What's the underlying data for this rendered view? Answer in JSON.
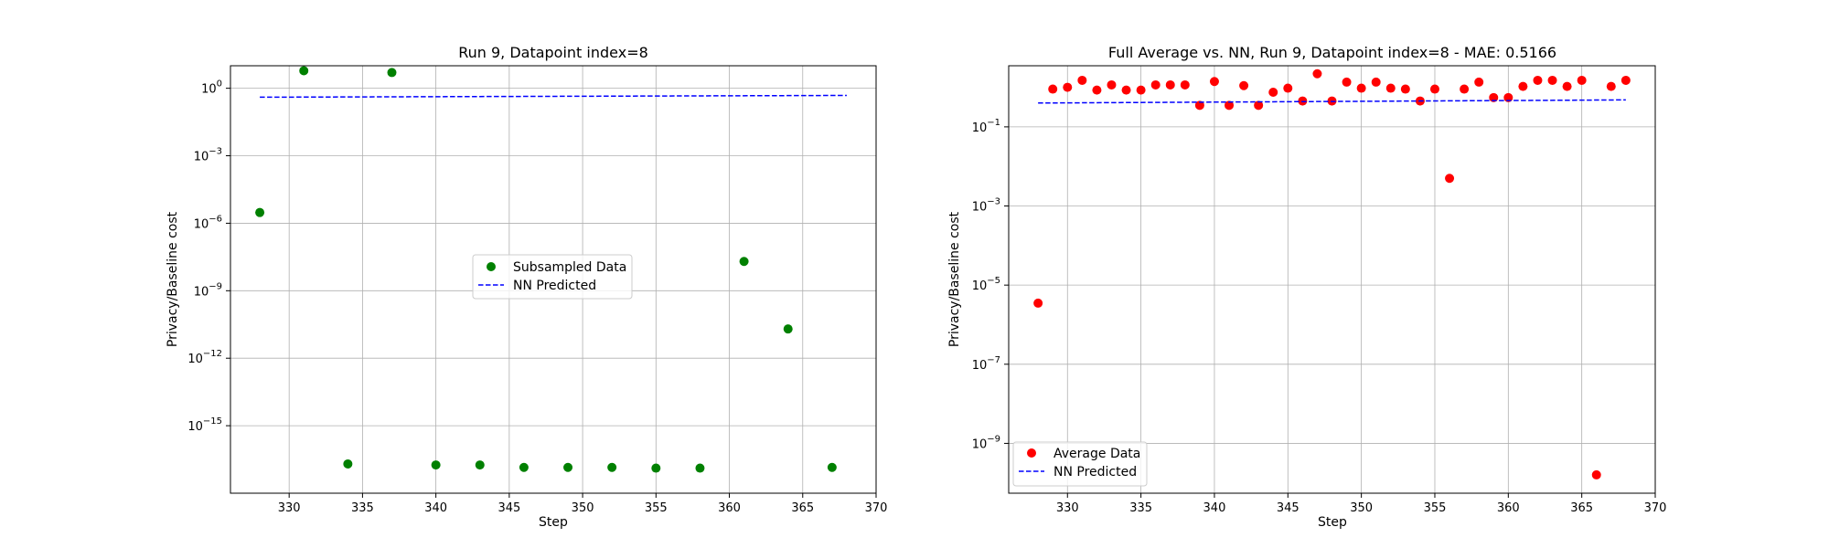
{
  "figure": {
    "background": "#ffffff"
  },
  "chart_data": [
    {
      "type": "scatter",
      "title": "Run 9, Datapoint index=8",
      "xlabel": "Step",
      "ylabel": "Privacy/Baseline cost",
      "xlim": [
        326,
        370
      ],
      "ylim": [
        1e-18,
        10
      ],
      "yscale": "log",
      "grid": true,
      "x_ticks": [
        330,
        335,
        340,
        345,
        350,
        355,
        360,
        365,
        370
      ],
      "x_tick_labels": [
        "330",
        "335",
        "340",
        "345",
        "350",
        "355",
        "360",
        "365",
        "370"
      ],
      "y_ticks": [
        {
          "value": 1,
          "base": "10",
          "exp": "0"
        },
        {
          "value": 0.001,
          "base": "10",
          "exp": "−3"
        },
        {
          "value": 1e-06,
          "base": "10",
          "exp": "−6"
        },
        {
          "value": 1e-09,
          "base": "10",
          "exp": "−9"
        },
        {
          "value": 1e-12,
          "base": "10",
          "exp": "−12"
        },
        {
          "value": 1e-15,
          "base": "10",
          "exp": "−15"
        }
      ],
      "legend_position": "center",
      "series": [
        {
          "name": "Subsampled Data",
          "kind": "points",
          "color": "#008000",
          "x": [
            328,
            331,
            334,
            337,
            340,
            343,
            346,
            349,
            352,
            355,
            358,
            361,
            364,
            367
          ],
          "y": [
            3e-06,
            6,
            2e-17,
            5,
            1.8e-17,
            1.8e-17,
            1.4e-17,
            1.4e-17,
            1.4e-17,
            1.3e-17,
            1.3e-17,
            2e-08,
            2e-11,
            1.4e-17
          ]
        },
        {
          "name": "NN Predicted",
          "kind": "dashed-line",
          "color": "#0000ff",
          "x": [
            328,
            368
          ],
          "y": [
            0.4,
            0.48
          ]
        }
      ]
    },
    {
      "type": "scatter",
      "title": "Full Average vs. NN, Run 9, Datapoint index=8 - MAE: 0.5166",
      "xlabel": "Step",
      "ylabel": "Privacy/Baseline cost",
      "xlim": [
        326,
        370
      ],
      "ylim": [
        5.5e-11,
        3.5
      ],
      "yscale": "log",
      "grid": true,
      "x_ticks": [
        330,
        335,
        340,
        345,
        350,
        355,
        360,
        365,
        370
      ],
      "x_tick_labels": [
        "330",
        "335",
        "340",
        "345",
        "350",
        "355",
        "360",
        "365",
        "370"
      ],
      "y_ticks": [
        {
          "value": 0.1,
          "base": "10",
          "exp": "−1"
        },
        {
          "value": 0.001,
          "base": "10",
          "exp": "−3"
        },
        {
          "value": 1e-05,
          "base": "10",
          "exp": "−5"
        },
        {
          "value": 1e-07,
          "base": "10",
          "exp": "−7"
        },
        {
          "value": 1e-09,
          "base": "10",
          "exp": "−9"
        }
      ],
      "legend_position": "lower left",
      "series": [
        {
          "name": "Average Data",
          "kind": "points",
          "color": "#ff0000",
          "x": [
            328,
            329,
            330,
            331,
            332,
            333,
            334,
            335,
            336,
            337,
            338,
            339,
            340,
            341,
            342,
            343,
            344,
            345,
            346,
            347,
            348,
            349,
            350,
            351,
            352,
            353,
            354,
            355,
            356,
            357,
            358,
            359,
            360,
            361,
            362,
            363,
            364,
            365,
            366,
            367,
            368
          ],
          "y": [
            3.5e-06,
            0.9,
            1.0,
            1.5,
            0.85,
            1.15,
            0.85,
            0.85,
            1.15,
            1.15,
            1.15,
            0.35,
            1.4,
            0.35,
            1.1,
            0.35,
            0.75,
            0.95,
            0.45,
            2.2,
            0.45,
            1.35,
            0.95,
            1.35,
            0.95,
            0.9,
            0.45,
            0.9,
            0.005,
            0.9,
            1.35,
            0.55,
            0.55,
            1.05,
            1.5,
            1.5,
            1.05,
            1.5,
            1.6e-10,
            1.05,
            1.5
          ]
        },
        {
          "name": "NN Predicted",
          "kind": "dashed-line",
          "color": "#0000ff",
          "x": [
            328,
            368
          ],
          "y": [
            0.4,
            0.48
          ]
        }
      ]
    }
  ]
}
